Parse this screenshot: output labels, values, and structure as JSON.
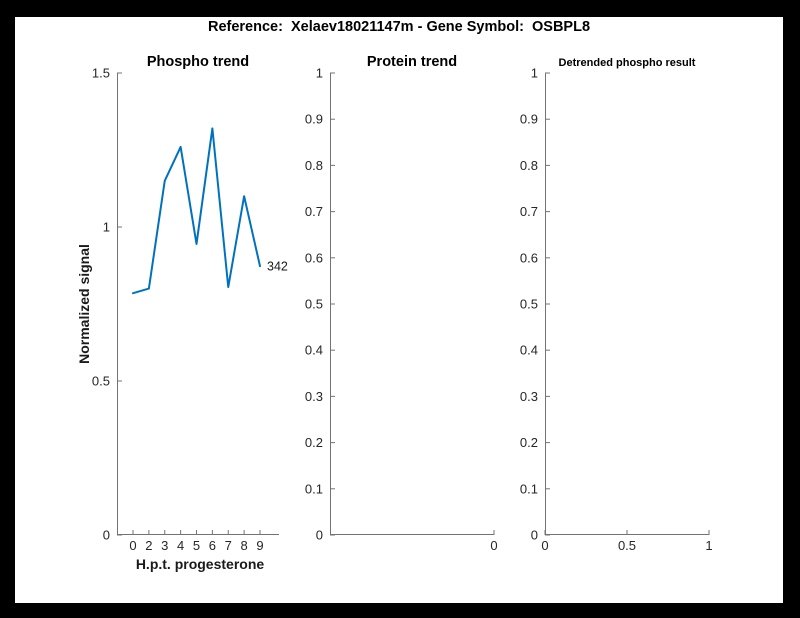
{
  "header": {
    "title": "Reference:  Xelaev18021147m - Gene Symbol:  OSBPL8"
  },
  "chart_data": [
    {
      "type": "line",
      "title": "Phospho trend",
      "xlabel": "H.p.t. progesterone",
      "ylabel": "Normalized signal",
      "x": [
        0,
        2,
        3,
        4,
        5,
        6,
        7,
        8,
        9
      ],
      "categories": [
        "0",
        "2",
        "3",
        "4",
        "5",
        "6",
        "7",
        "8",
        "9"
      ],
      "values": [
        0.785,
        0.8,
        1.15,
        1.26,
        0.945,
        1.32,
        0.805,
        1.1,
        0.873
      ],
      "end_label": "342",
      "line_color": "#0072BD",
      "ylim": [
        0,
        1.5
      ],
      "yticks": [
        "0",
        "0.5",
        "1",
        "1.5"
      ],
      "grid": false,
      "legend": null
    },
    {
      "type": "line",
      "title": "Protein trend",
      "xlabel": "",
      "ylabel": "",
      "values": [],
      "ylim": [
        0,
        1
      ],
      "yticks": [
        "0",
        "0.1",
        "0.2",
        "0.3",
        "0.4",
        "0.5",
        "0.6",
        "0.7",
        "0.8",
        "0.9",
        "1"
      ],
      "xticks": [
        "0"
      ],
      "xticks_at": "right-end",
      "grid": false,
      "legend": null
    },
    {
      "type": "line",
      "title": "Detrended phospho result",
      "xlabel": "",
      "ylabel": "",
      "values": [],
      "xlim": [
        0,
        1
      ],
      "ylim": [
        0,
        1
      ],
      "yticks": [
        "0",
        "0.1",
        "0.2",
        "0.3",
        "0.4",
        "0.5",
        "0.6",
        "0.7",
        "0.8",
        "0.9",
        "1"
      ],
      "xticks": [
        "0",
        "0.5",
        "1"
      ],
      "xticks_at": "scale",
      "grid": false,
      "legend": null
    }
  ],
  "style": {
    "axis_color": "#737373",
    "tick_label_color": "#262626",
    "end_label_color": "#1a1a1a"
  }
}
